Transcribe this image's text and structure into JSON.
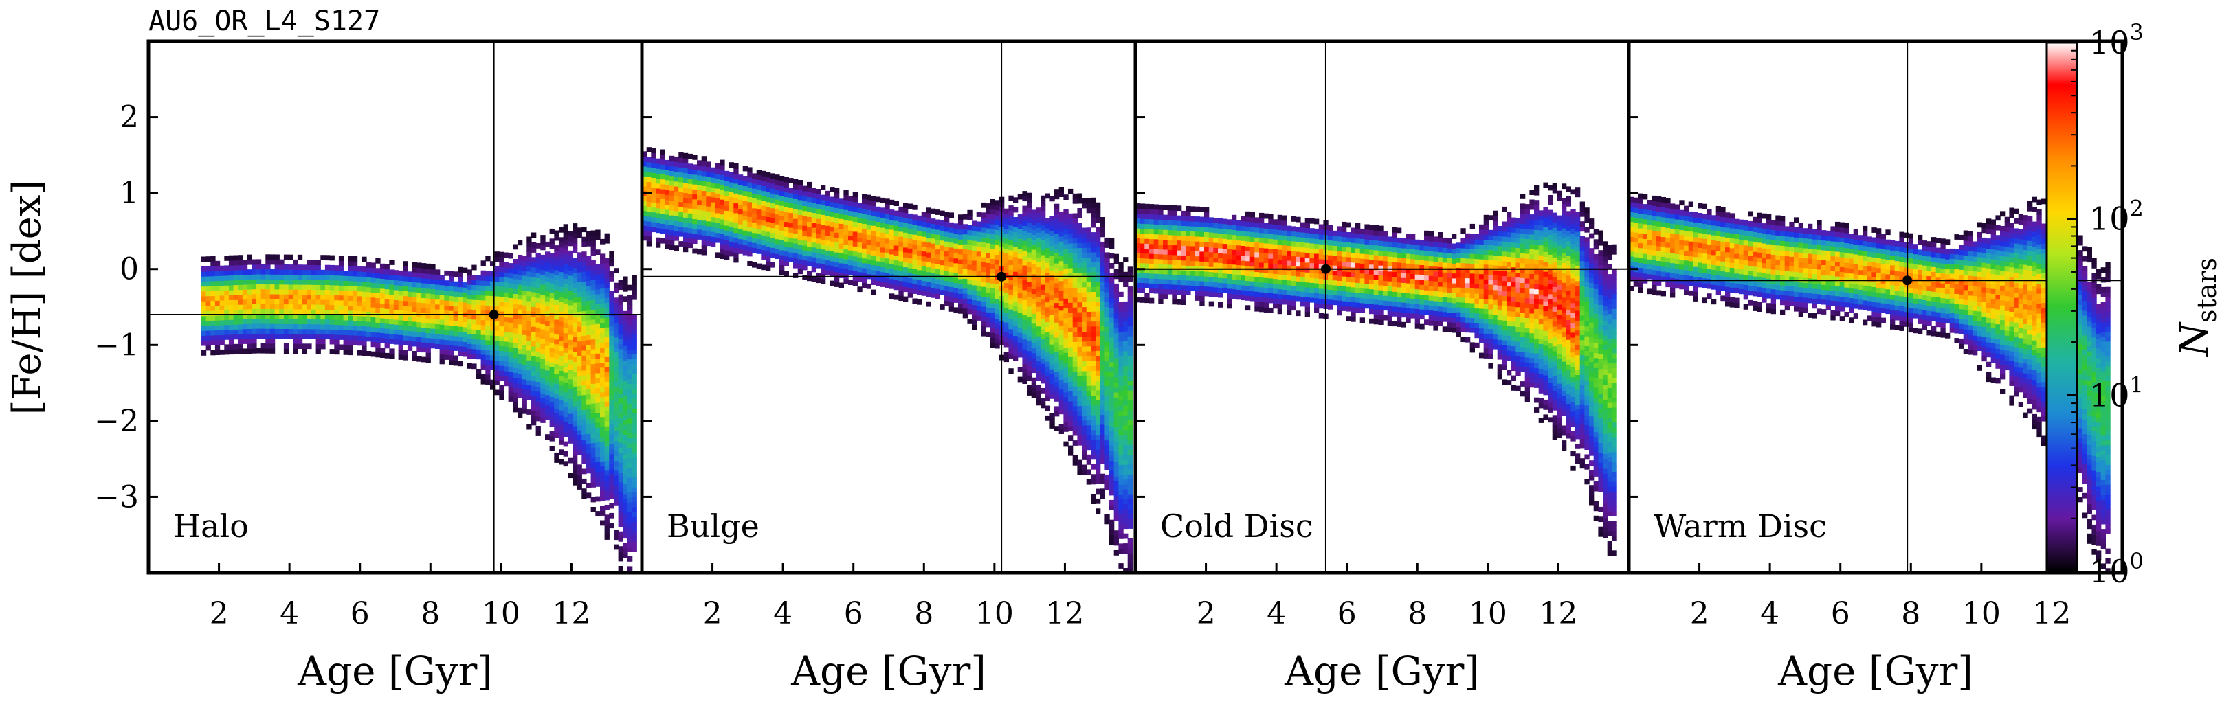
{
  "figure": {
    "simulation_label": "AU6_OR_L4_S127"
  },
  "colorbar": {
    "label_main": "N",
    "label_sub": "stars",
    "scale": "log",
    "range": [
      1,
      1000
    ],
    "tick_labels": [
      {
        "value": 1,
        "base": "10",
        "exp": "0"
      },
      {
        "value": 10,
        "base": "10",
        "exp": "1"
      },
      {
        "value": 100,
        "base": "10",
        "exp": "2"
      },
      {
        "value": 1000,
        "base": "10",
        "exp": "3"
      }
    ],
    "colormap": [
      "#ffffff",
      "#ff0000",
      "#ff8c00",
      "#ffd700",
      "#b4e61e",
      "#32c832",
      "#20b4a0",
      "#1e8cd2",
      "#1e32e6",
      "#6419a0",
      "#000000"
    ]
  },
  "chart_data": [
    {
      "type": "heatmap",
      "panel_label": "Halo",
      "xlabel": "Age [Gyr]",
      "ylabel": "[Fe/H] [dex]",
      "xlim": [
        0,
        14
      ],
      "ylim": [
        -4,
        3
      ],
      "x_ticks": [
        "2",
        "4",
        "6",
        "8",
        "10",
        "12"
      ],
      "y_ticks": [
        "2",
        "1",
        "0",
        "−1",
        "−2",
        "−3"
      ],
      "median_age": 9.8,
      "median_feh": -0.6,
      "max_density_log10": 2.5,
      "ridge": [
        [
          1.5,
          -0.45
        ],
        [
          3,
          -0.42
        ],
        [
          5,
          -0.43
        ],
        [
          6,
          -0.45
        ],
        [
          7,
          -0.5
        ],
        [
          8,
          -0.55
        ],
        [
          9,
          -0.6
        ],
        [
          10,
          -0.65
        ],
        [
          11,
          -0.75
        ],
        [
          12,
          -0.95
        ],
        [
          13,
          -1.4
        ],
        [
          13.5,
          -2.0
        ]
      ]
    },
    {
      "type": "heatmap",
      "panel_label": "Bulge",
      "xlabel": "Age [Gyr]",
      "ylabel": "",
      "xlim": [
        0,
        14
      ],
      "ylim": [
        -4,
        3
      ],
      "x_ticks": [
        "2",
        "4",
        "6",
        "8",
        "10",
        "12"
      ],
      "median_age": 10.2,
      "median_feh": -0.1,
      "max_density_log10": 2.7,
      "ridge": [
        [
          0,
          1.0
        ],
        [
          2,
          0.85
        ],
        [
          4,
          0.6
        ],
        [
          6,
          0.4
        ],
        [
          8,
          0.2
        ],
        [
          10,
          0.0
        ],
        [
          11,
          -0.2
        ],
        [
          12,
          -0.5
        ],
        [
          13,
          -1.0
        ],
        [
          13.5,
          -1.8
        ]
      ]
    },
    {
      "type": "heatmap",
      "panel_label": "Cold Disc",
      "xlabel": "Age [Gyr]",
      "ylabel": "",
      "xlim": [
        0,
        14
      ],
      "ylim": [
        -4,
        3
      ],
      "x_ticks": [
        "2",
        "4",
        "6",
        "8",
        "10",
        "12"
      ],
      "median_age": 5.4,
      "median_feh": 0.0,
      "max_density_log10": 3.0,
      "ridge": [
        [
          0,
          0.25
        ],
        [
          2,
          0.2
        ],
        [
          4,
          0.1
        ],
        [
          6,
          0.0
        ],
        [
          8,
          -0.1
        ],
        [
          10,
          -0.2
        ],
        [
          11.5,
          -0.3
        ],
        [
          12.5,
          -0.6
        ],
        [
          13.3,
          -1.5
        ]
      ]
    },
    {
      "type": "heatmap",
      "panel_label": "Warm Disc",
      "xlabel": "Age [Gyr]",
      "ylabel": "",
      "xlim": [
        0,
        14
      ],
      "ylim": [
        -4,
        3
      ],
      "x_ticks": [
        "2",
        "4",
        "6",
        "8",
        "10",
        "12"
      ],
      "median_age": 7.9,
      "median_feh": -0.15,
      "max_density_log10": 2.6,
      "ridge": [
        [
          0,
          0.4
        ],
        [
          2,
          0.25
        ],
        [
          4,
          0.1
        ],
        [
          6,
          0.0
        ],
        [
          8,
          -0.15
        ],
        [
          10,
          -0.3
        ],
        [
          11.5,
          -0.45
        ],
        [
          12.5,
          -0.9
        ],
        [
          13.3,
          -1.8
        ]
      ]
    }
  ]
}
